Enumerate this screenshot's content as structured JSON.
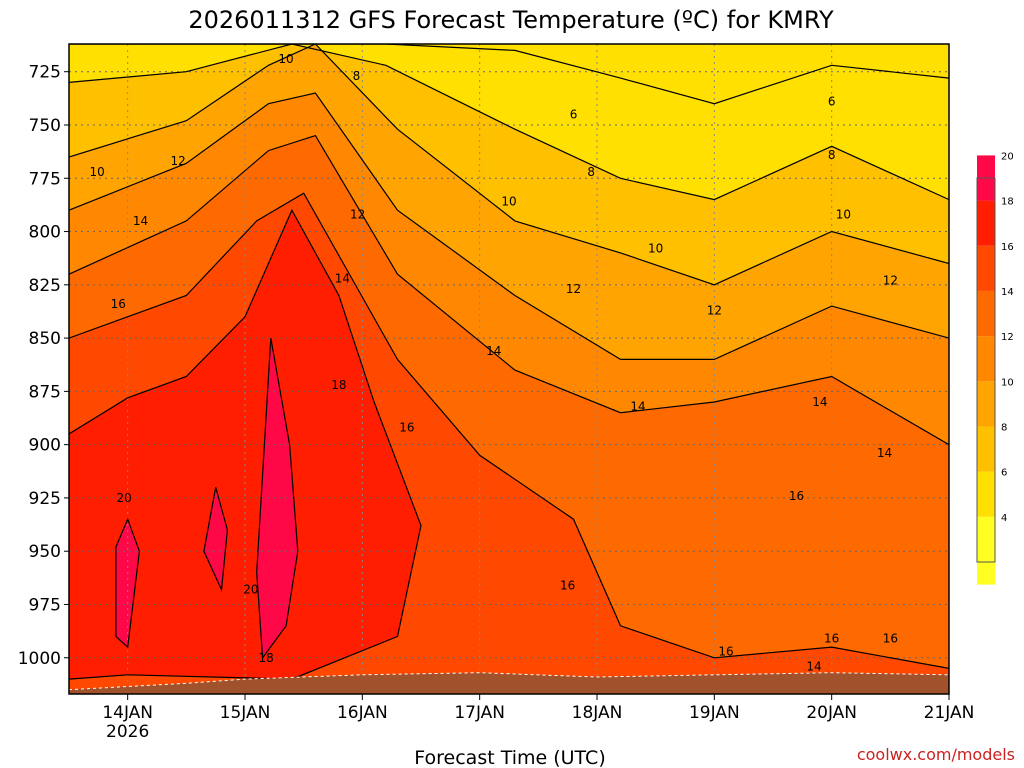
{
  "chart_data": {
    "type": "heatmap",
    "title": "2026011312 GFS Forecast Temperature (ºC) for KMRY",
    "xlabel": "Forecast Time (UTC)",
    "ylabel": "",
    "watermark": "coolwx.com/models",
    "y_axis": {
      "ticks": [
        "725",
        "750",
        "775",
        "800",
        "825",
        "850",
        "875",
        "900",
        "925",
        "950",
        "975",
        "1000"
      ],
      "range": [
        1017,
        712
      ],
      "inverted": true,
      "grid": "dotted"
    },
    "x_axis": {
      "ticks": [
        {
          "label": "14JAN",
          "sub": "2026"
        },
        {
          "label": "15JAN",
          "sub": ""
        },
        {
          "label": "16JAN",
          "sub": ""
        },
        {
          "label": "17JAN",
          "sub": ""
        },
        {
          "label": "18JAN",
          "sub": ""
        },
        {
          "label": "19JAN",
          "sub": ""
        },
        {
          "label": "20JAN",
          "sub": ""
        },
        {
          "label": "21JAN",
          "sub": ""
        }
      ],
      "range_days": [
        -0.5,
        7.0
      ],
      "grid": "dotted"
    },
    "colorbar": {
      "labels": [
        "4",
        "6",
        "8",
        "10",
        "12",
        "14",
        "16",
        "18",
        "20"
      ],
      "placement": "right"
    },
    "bands": [
      {
        "level": 4,
        "color": "#ffff22"
      },
      {
        "level": 6,
        "color": "#ffe000"
      },
      {
        "level": 8,
        "color": "#ffc000"
      },
      {
        "level": 10,
        "color": "#ffa400"
      },
      {
        "level": 12,
        "color": "#ff8800"
      },
      {
        "level": 14,
        "color": "#ff6a00"
      },
      {
        "level": 16,
        "color": "#ff4800"
      },
      {
        "level": 18,
        "color": "#ff1e00"
      },
      {
        "level": 20,
        "color": "#ff0848"
      }
    ],
    "contours": [
      {
        "value": 6,
        "label": "6",
        "points": [
          [
            -0.5,
            712
          ],
          [
            2.2,
            712
          ],
          [
            3.3,
            715
          ],
          [
            4.2,
            728
          ],
          [
            5.0,
            740
          ],
          [
            6.0,
            722
          ],
          [
            7.0,
            728
          ]
        ]
      },
      {
        "value": 8,
        "label": "8",
        "points": [
          [
            -0.5,
            730
          ],
          [
            0.5,
            725
          ],
          [
            1.4,
            712
          ],
          [
            2.2,
            722
          ],
          [
            3.3,
            752
          ],
          [
            4.2,
            775
          ],
          [
            5.0,
            785
          ],
          [
            6.0,
            760
          ],
          [
            7.0,
            785
          ]
        ]
      },
      {
        "value": 10,
        "label": "10",
        "points": [
          [
            -0.5,
            765
          ],
          [
            0.5,
            748
          ],
          [
            1.2,
            722
          ],
          [
            1.6,
            712
          ],
          [
            2.3,
            752
          ],
          [
            3.3,
            795
          ],
          [
            4.2,
            810
          ],
          [
            5.0,
            825
          ],
          [
            6.0,
            800
          ],
          [
            7.0,
            815
          ]
        ]
      },
      {
        "value": 12,
        "label": "12",
        "points": [
          [
            -0.5,
            790
          ],
          [
            0.5,
            768
          ],
          [
            1.2,
            740
          ],
          [
            1.6,
            735
          ],
          [
            2.3,
            790
          ],
          [
            3.3,
            830
          ],
          [
            4.2,
            860
          ],
          [
            5.0,
            860
          ],
          [
            6.0,
            835
          ],
          [
            7.0,
            850
          ]
        ]
      },
      {
        "value": 14,
        "label": "14",
        "points": [
          [
            -0.5,
            820
          ],
          [
            0.5,
            795
          ],
          [
            1.2,
            762
          ],
          [
            1.6,
            755
          ],
          [
            2.3,
            820
          ],
          [
            3.3,
            865
          ],
          [
            4.2,
            885
          ],
          [
            5.0,
            880
          ],
          [
            6.0,
            868
          ],
          [
            7.0,
            900
          ]
        ]
      },
      {
        "value": 16,
        "label": "16",
        "points": [
          [
            -0.5,
            850
          ],
          [
            0.5,
            830
          ],
          [
            1.1,
            795
          ],
          [
            1.5,
            782
          ],
          [
            2.3,
            860
          ],
          [
            3.0,
            905
          ],
          [
            3.8,
            935
          ],
          [
            4.2,
            985
          ],
          [
            5.0,
            1000
          ],
          [
            6.0,
            995
          ],
          [
            7.0,
            1005
          ]
        ]
      },
      {
        "value": 18,
        "label": "18",
        "points": [
          [
            -0.5,
            895
          ],
          [
            0.0,
            878
          ],
          [
            0.5,
            868
          ],
          [
            1.0,
            840
          ],
          [
            1.4,
            790
          ],
          [
            1.8,
            830
          ],
          [
            2.1,
            880
          ],
          [
            2.5,
            938
          ],
          [
            2.3,
            990
          ],
          [
            1.4,
            1010
          ],
          [
            0.0,
            1008
          ],
          [
            -0.5,
            1010
          ]
        ]
      },
      {
        "value": 20,
        "label": "20",
        "points": [
          [
            -0.1,
            948
          ],
          [
            0.0,
            935
          ],
          [
            0.1,
            950
          ],
          [
            0.0,
            995
          ],
          [
            -0.1,
            990
          ]
        ]
      },
      {
        "value": 20,
        "label": "",
        "points": [
          [
            0.65,
            950
          ],
          [
            0.75,
            920
          ],
          [
            0.85,
            940
          ],
          [
            0.8,
            968
          ]
        ]
      },
      {
        "value": 20,
        "label": "20",
        "points": [
          [
            1.1,
            960
          ],
          [
            1.22,
            850
          ],
          [
            1.38,
            900
          ],
          [
            1.45,
            950
          ],
          [
            1.35,
            985
          ],
          [
            1.15,
            1000
          ]
        ]
      }
    ],
    "contour_labels": [
      {
        "text": "10",
        "day": -0.26,
        "level": 772
      },
      {
        "text": "12",
        "day": 0.43,
        "level": 767
      },
      {
        "text": "14",
        "day": 0.11,
        "level": 795
      },
      {
        "text": "16",
        "day": -0.08,
        "level": 834
      },
      {
        "text": "20",
        "day": -0.03,
        "level": 925
      },
      {
        "text": "10",
        "day": 1.35,
        "level": 719
      },
      {
        "text": "8",
        "day": 1.95,
        "level": 727
      },
      {
        "text": "12",
        "day": 1.96,
        "level": 792
      },
      {
        "text": "14",
        "day": 1.83,
        "level": 822
      },
      {
        "text": "18",
        "day": 1.8,
        "level": 872
      },
      {
        "text": "20",
        "day": 1.05,
        "level": 968
      },
      {
        "text": "18",
        "day": 1.18,
        "level": 1000
      },
      {
        "text": "16",
        "day": 2.38,
        "level": 892
      },
      {
        "text": "6",
        "day": 3.8,
        "level": 745
      },
      {
        "text": "8",
        "day": 3.95,
        "level": 772
      },
      {
        "text": "10",
        "day": 3.25,
        "level": 786
      },
      {
        "text": "10",
        "day": 4.5,
        "level": 808
      },
      {
        "text": "12",
        "day": 3.8,
        "level": 827
      },
      {
        "text": "14",
        "day": 3.12,
        "level": 856
      },
      {
        "text": "14",
        "day": 4.35,
        "level": 882
      },
      {
        "text": "16",
        "day": 3.75,
        "level": 966
      },
      {
        "text": "12",
        "day": 5.0,
        "level": 837
      },
      {
        "text": "8",
        "day": 6.0,
        "level": 764
      },
      {
        "text": "6",
        "day": 6.0,
        "level": 739
      },
      {
        "text": "10",
        "day": 6.1,
        "level": 792
      },
      {
        "text": "12",
        "day": 6.5,
        "level": 823
      },
      {
        "text": "14",
        "day": 5.9,
        "level": 880
      },
      {
        "text": "14",
        "day": 6.45,
        "level": 904
      },
      {
        "text": "16",
        "day": 5.7,
        "level": 924
      },
      {
        "text": "16",
        "day": 6.0,
        "level": 991
      },
      {
        "text": "16",
        "day": 5.1,
        "level": 997
      },
      {
        "text": "14",
        "day": 5.85,
        "level": 1004
      },
      {
        "text": "16",
        "day": 6.5,
        "level": 991
      }
    ],
    "terrain": {
      "color": "#a0522d",
      "points": [
        [
          -0.5,
          1015
        ],
        [
          0.5,
          1012
        ],
        [
          1.0,
          1010
        ],
        [
          2.0,
          1008
        ],
        [
          3.0,
          1007
        ],
        [
          4.0,
          1009
        ],
        [
          5.0,
          1008
        ],
        [
          6.0,
          1007
        ],
        [
          7.0,
          1008
        ]
      ]
    }
  }
}
